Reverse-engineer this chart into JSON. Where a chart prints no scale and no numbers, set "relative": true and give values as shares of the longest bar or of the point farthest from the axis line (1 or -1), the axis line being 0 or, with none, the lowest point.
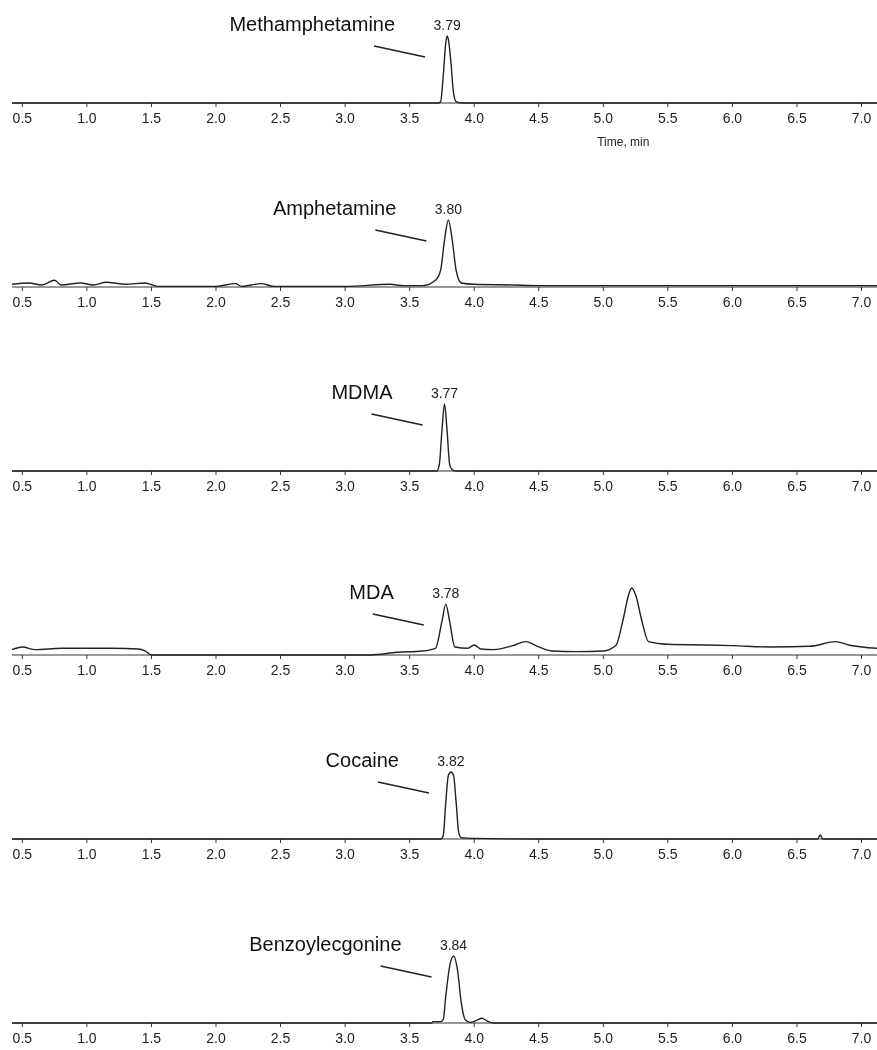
{
  "chart_data": [
    {
      "type": "line",
      "relative": true,
      "color": "#222222",
      "xlabel": "Time, min",
      "annotations": [
        "Methamphetamine",
        {
          "text": "3.79",
          "x": 3.79,
          "y": 1
        }
      ],
      "xlim": [
        0.42,
        7.12
      ],
      "xticks": [
        0.5,
        {
          "value": 1,
          "label": "1.0"
        },
        1.5,
        {
          "value": 2,
          "label": "2.0"
        },
        2.5,
        {
          "value": 3,
          "label": "3.0"
        },
        3.5,
        {
          "value": 4,
          "label": "4.0"
        },
        4.5,
        {
          "value": 5,
          "label": "5.0"
        },
        5.5,
        {
          "value": 6,
          "label": "6.0"
        },
        6.5,
        {
          "value": 7,
          "label": "7.0"
        }
      ],
      "x": [
        0.42,
        1,
        2,
        3,
        3.5,
        3.72,
        3.74,
        3.76,
        3.78,
        3.79,
        3.8,
        3.82,
        3.84,
        3.86,
        3.9,
        4.5,
        5.5,
        6.5,
        7.12
      ],
      "values": [
        0,
        0,
        0,
        0,
        0,
        0,
        0.02,
        0.4,
        0.9,
        1,
        0.95,
        0.6,
        0.15,
        0.02,
        0,
        0,
        0,
        0,
        0
      ]
    },
    {
      "type": "line",
      "relative": true,
      "color": "#222222",
      "annotations": [
        "Amphetamine",
        {
          "text": "3.80",
          "x": 3.8,
          "y": 1
        }
      ],
      "xlim": [
        0.42,
        7.12
      ],
      "xticks": [
        0.5,
        {
          "value": 1,
          "label": "1.0"
        },
        1.5,
        {
          "value": 2,
          "label": "2.0"
        },
        2.5,
        {
          "value": 3,
          "label": "3.0"
        },
        3.5,
        {
          "value": 4,
          "label": "4.0"
        },
        4.5,
        {
          "value": 5,
          "label": "5.0"
        },
        5.5,
        {
          "value": 6,
          "label": "6.0"
        },
        6.5,
        {
          "value": 7,
          "label": "7.0"
        }
      ],
      "x": [
        0.42,
        0.55,
        0.65,
        0.75,
        0.8,
        0.95,
        1.05,
        1.15,
        1.3,
        1.45,
        1.55,
        2,
        2.15,
        2.2,
        2.35,
        2.45,
        3,
        3.35,
        3.45,
        3.6,
        3.7,
        3.74,
        3.77,
        3.8,
        3.83,
        3.86,
        3.9,
        4,
        4.3,
        4.5,
        5,
        5.5,
        6,
        6.5,
        7.12
      ],
      "values": [
        0.04,
        0.06,
        0.03,
        0.1,
        0.03,
        0.06,
        0.03,
        0.07,
        0.04,
        0.06,
        0.01,
        0.01,
        0.05,
        0.01,
        0.05,
        0.01,
        0.01,
        0.04,
        0.02,
        0.02,
        0.1,
        0.25,
        0.7,
        1,
        0.7,
        0.25,
        0.06,
        0.04,
        0.03,
        0.02,
        0.02,
        0.02,
        0.02,
        0.02,
        0.02
      ]
    },
    {
      "type": "line",
      "relative": true,
      "color": "#222222",
      "annotations": [
        "MDMA",
        {
          "text": "3.77",
          "x": 3.77,
          "y": 1
        }
      ],
      "xlim": [
        0.42,
        7.12
      ],
      "xticks": [
        0.5,
        {
          "value": 1,
          "label": "1.0"
        },
        1.5,
        {
          "value": 2,
          "label": "2.0"
        },
        2.5,
        {
          "value": 3,
          "label": "3.0"
        },
        3.5,
        {
          "value": 4,
          "label": "4.0"
        },
        4.5,
        {
          "value": 5,
          "label": "5.0"
        },
        5.5,
        {
          "value": 6,
          "label": "6.0"
        },
        6.5,
        {
          "value": 7,
          "label": "7.0"
        }
      ],
      "x": [
        0.42,
        1,
        2,
        3,
        3.5,
        3.71,
        3.73,
        3.75,
        3.77,
        3.79,
        3.81,
        3.83,
        3.86,
        4,
        5,
        6,
        7.12
      ],
      "values": [
        0,
        0,
        0,
        0,
        0,
        0,
        0.1,
        0.6,
        1,
        0.6,
        0.1,
        0.02,
        0,
        0,
        0,
        0,
        0
      ]
    },
    {
      "type": "line",
      "relative": true,
      "color": "#222222",
      "annotations": [
        "MDA",
        {
          "text": "3.78",
          "x": 3.78,
          "y": 0.76
        }
      ],
      "xlim": [
        0.42,
        7.12
      ],
      "xticks": [
        0.5,
        {
          "value": 1,
          "label": "1.0"
        },
        1.5,
        {
          "value": 2,
          "label": "2.0"
        },
        2.5,
        {
          "value": 3,
          "label": "3.0"
        },
        3.5,
        {
          "value": 4,
          "label": "4.0"
        },
        4.5,
        {
          "value": 5,
          "label": "5.0"
        },
        5.5,
        {
          "value": 6,
          "label": "6.0"
        },
        6.5,
        {
          "value": 7,
          "label": "7.0"
        }
      ],
      "x": [
        0.42,
        0.5,
        0.6,
        0.8,
        1,
        1.2,
        1.4,
        1.45,
        1.5,
        2,
        2.5,
        3,
        3.2,
        3.4,
        3.6,
        3.7,
        3.75,
        3.78,
        3.81,
        3.85,
        3.95,
        4,
        4.05,
        4.15,
        4.3,
        4.4,
        4.5,
        4.6,
        4.8,
        5,
        5.1,
        5.15,
        5.2,
        5.22,
        5.25,
        5.3,
        5.35,
        5.5,
        5.8,
        6,
        6.3,
        6.6,
        6.8,
        6.9,
        7.12
      ],
      "values": [
        0.08,
        0.12,
        0.08,
        0.1,
        0.1,
        0.1,
        0.09,
        0.06,
        0,
        0,
        0,
        0,
        0,
        0.04,
        0.06,
        0.1,
        0.5,
        0.76,
        0.5,
        0.12,
        0.1,
        0.15,
        0.09,
        0.08,
        0.14,
        0.2,
        0.12,
        0.06,
        0.05,
        0.06,
        0.15,
        0.5,
        0.92,
        1,
        0.9,
        0.5,
        0.2,
        0.16,
        0.15,
        0.14,
        0.12,
        0.13,
        0.2,
        0.15,
        0.1
      ]
    },
    {
      "type": "line",
      "relative": true,
      "color": "#222222",
      "annotations": [
        "Cocaine",
        {
          "text": "3.82",
          "x": 3.82,
          "y": 1
        }
      ],
      "xlim": [
        0.42,
        7.12
      ],
      "xticks": [
        0.5,
        {
          "value": 1,
          "label": "1.0"
        },
        1.5,
        {
          "value": 2,
          "label": "2.0"
        },
        2.5,
        {
          "value": 3,
          "label": "3.0"
        },
        3.5,
        {
          "value": 4,
          "label": "4.0"
        },
        4.5,
        {
          "value": 5,
          "label": "5.0"
        },
        5.5,
        {
          "value": 6,
          "label": "6.0"
        },
        6.5,
        {
          "value": 7,
          "label": "7.0"
        }
      ],
      "x": [
        0.42,
        1,
        2,
        3,
        3.5,
        3.74,
        3.76,
        3.78,
        3.8,
        3.82,
        3.84,
        3.86,
        3.88,
        3.9,
        4,
        4.5,
        5,
        6,
        6.66,
        6.68,
        6.7,
        7.12
      ],
      "values": [
        0,
        0,
        0,
        0,
        0,
        0,
        0.05,
        0.55,
        0.95,
        1,
        0.95,
        0.55,
        0.1,
        0.02,
        0.01,
        0,
        0,
        0,
        0,
        0.06,
        0,
        0
      ]
    },
    {
      "type": "line",
      "relative": true,
      "color": "#222222",
      "annotations": [
        "Benzoylecgonine",
        {
          "text": "3.84",
          "x": 3.84,
          "y": 1
        }
      ],
      "xlim": [
        0.42,
        7.12
      ],
      "xticks": [
        0.5,
        {
          "value": 1,
          "label": "1.0"
        },
        1.5,
        {
          "value": 2,
          "label": "2.0"
        },
        2.5,
        {
          "value": 3,
          "label": "3.0"
        },
        3.5,
        {
          "value": 4,
          "label": "4.0"
        },
        4.5,
        {
          "value": 5,
          "label": "5.0"
        },
        5.5,
        {
          "value": 6,
          "label": "6.0"
        },
        6.5,
        {
          "value": 7,
          "label": "7.0"
        }
      ],
      "x": [
        0.42,
        1,
        2,
        3,
        3.5,
        3.67,
        3.68,
        3.74,
        3.76,
        3.78,
        3.81,
        3.84,
        3.87,
        3.9,
        3.93,
        3.97,
        4.02,
        4.06,
        4.1,
        4.15,
        5,
        6,
        7.12
      ],
      "values": [
        0,
        0,
        0,
        0,
        0,
        0,
        0.02,
        0.02,
        0.05,
        0.4,
        0.85,
        1,
        0.8,
        0.3,
        0.05,
        0.01,
        0.04,
        0.07,
        0.03,
        0,
        0,
        0,
        0
      ]
    }
  ]
}
